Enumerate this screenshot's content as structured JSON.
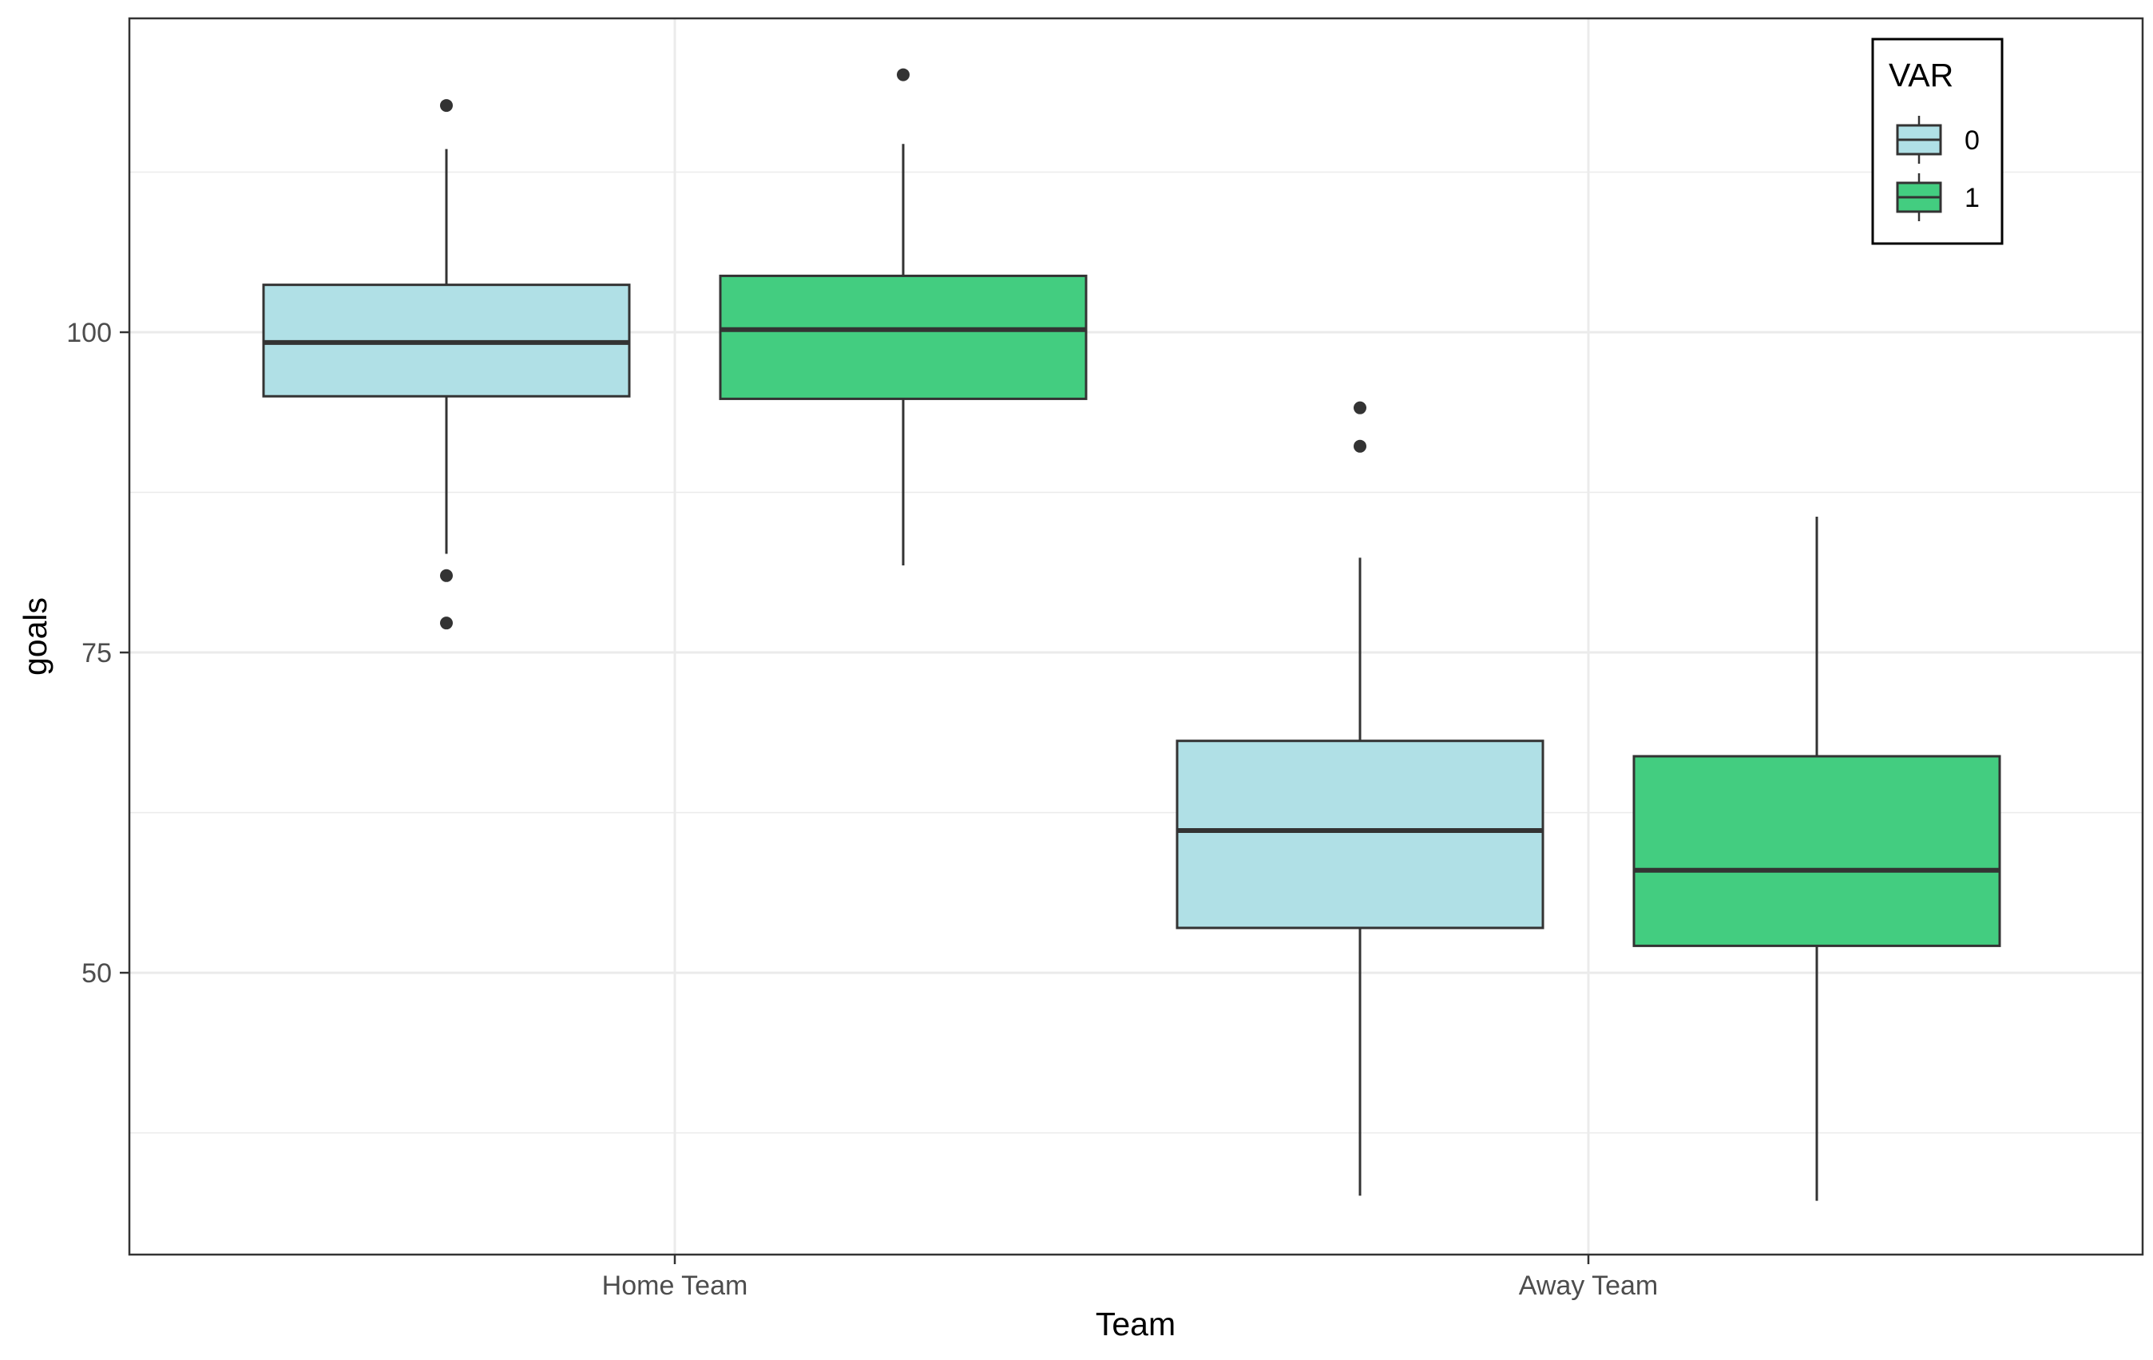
{
  "chart_data": {
    "type": "boxplot",
    "xlabel": "Team",
    "ylabel": "goals",
    "categories": [
      "Home Team",
      "Away Team"
    ],
    "ylim": [
      28,
      124.5
    ],
    "y_ticks": [
      50,
      75,
      100
    ],
    "y_minor_ticks": [
      37.5,
      62.5,
      87.5,
      112.5
    ],
    "grid": true,
    "legend": {
      "title": "VAR",
      "position": "top-right",
      "entries": [
        {
          "label": "0",
          "color": "#b0e0e6"
        },
        {
          "label": "1",
          "color": "#43cd80"
        }
      ]
    },
    "series": [
      {
        "var": "0",
        "color": "#b0e0e6",
        "boxes": [
          {
            "category": "Home Team",
            "whisker_low": 82.7,
            "q1": 95.0,
            "median": 99.2,
            "q3": 103.7,
            "whisker_high": 114.3,
            "outliers": [
              117.7,
              81.0,
              77.3
            ]
          },
          {
            "category": "Away Team",
            "whisker_low": 32.6,
            "q1": 53.5,
            "median": 61.1,
            "q3": 68.1,
            "whisker_high": 82.4,
            "outliers": [
              94.1,
              91.1
            ]
          }
        ]
      },
      {
        "var": "1",
        "color": "#43cd80",
        "boxes": [
          {
            "category": "Home Team",
            "whisker_low": 81.8,
            "q1": 94.8,
            "median": 100.2,
            "q3": 104.4,
            "whisker_high": 114.7,
            "outliers": [
              120.1
            ]
          },
          {
            "category": "Away Team",
            "whisker_low": 32.2,
            "q1": 52.1,
            "median": 58.0,
            "q3": 66.9,
            "whisker_high": 85.6,
            "outliers": []
          }
        ]
      }
    ]
  }
}
